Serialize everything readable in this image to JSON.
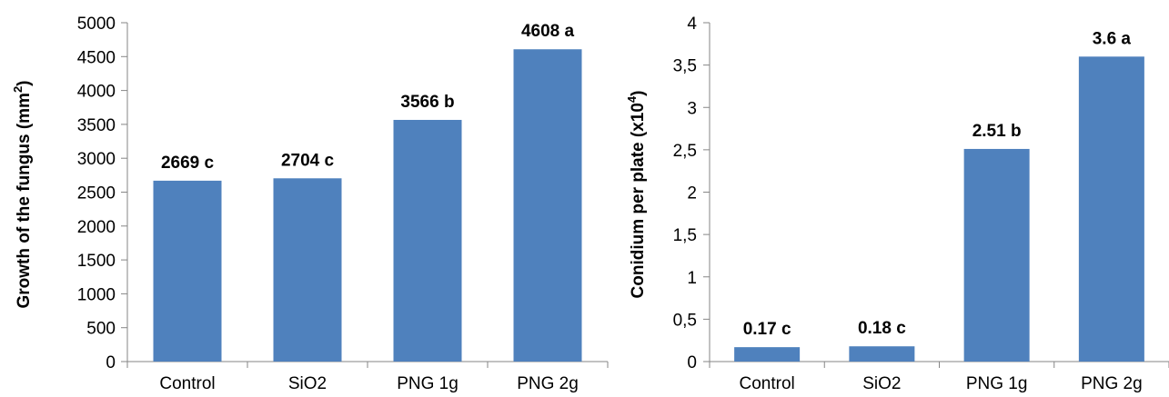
{
  "chart_data": [
    {
      "type": "bar",
      "categories": [
        "Control",
        "SiO2",
        "PNG 1g",
        "PNG 2g"
      ],
      "values": [
        2669,
        2704,
        3566,
        4608
      ],
      "data_labels": [
        "2669 c",
        "2704 c",
        "3566 b",
        "4608 a"
      ],
      "ylabel_main": "Growth of the fungus (mm",
      "ylabel_sup": "2",
      "ylabel_end": ")",
      "ylim": [
        0,
        5000
      ],
      "yticks": [
        0,
        500,
        1000,
        1500,
        2000,
        2500,
        3000,
        3500,
        4000,
        4500,
        5000
      ],
      "ytick_labels": [
        "0",
        "500",
        "1000",
        "1500",
        "2000",
        "2500",
        "3000",
        "3500",
        "4000",
        "4500",
        "5000"
      ],
      "bar_color": "#4F81BD",
      "grid": false
    },
    {
      "type": "bar",
      "categories": [
        "Control",
        "SiO2",
        "PNG 1g",
        "PNG 2g"
      ],
      "values": [
        0.17,
        0.18,
        2.51,
        3.6
      ],
      "data_labels": [
        "0.17 c",
        "0.18 c",
        "2.51 b",
        "3.6 a"
      ],
      "ylabel_main": "Conidium per plate (x10",
      "ylabel_sup": "4",
      "ylabel_end": ")",
      "ylim": [
        0,
        4
      ],
      "yticks": [
        0,
        0.5,
        1,
        1.5,
        2,
        2.5,
        3,
        3.5,
        4
      ],
      "ytick_labels": [
        "0",
        "0,5",
        "1",
        "1,5",
        "2",
        "2,5",
        "3",
        "3,5",
        "4"
      ],
      "bar_color": "#4F81BD",
      "grid": false
    }
  ]
}
